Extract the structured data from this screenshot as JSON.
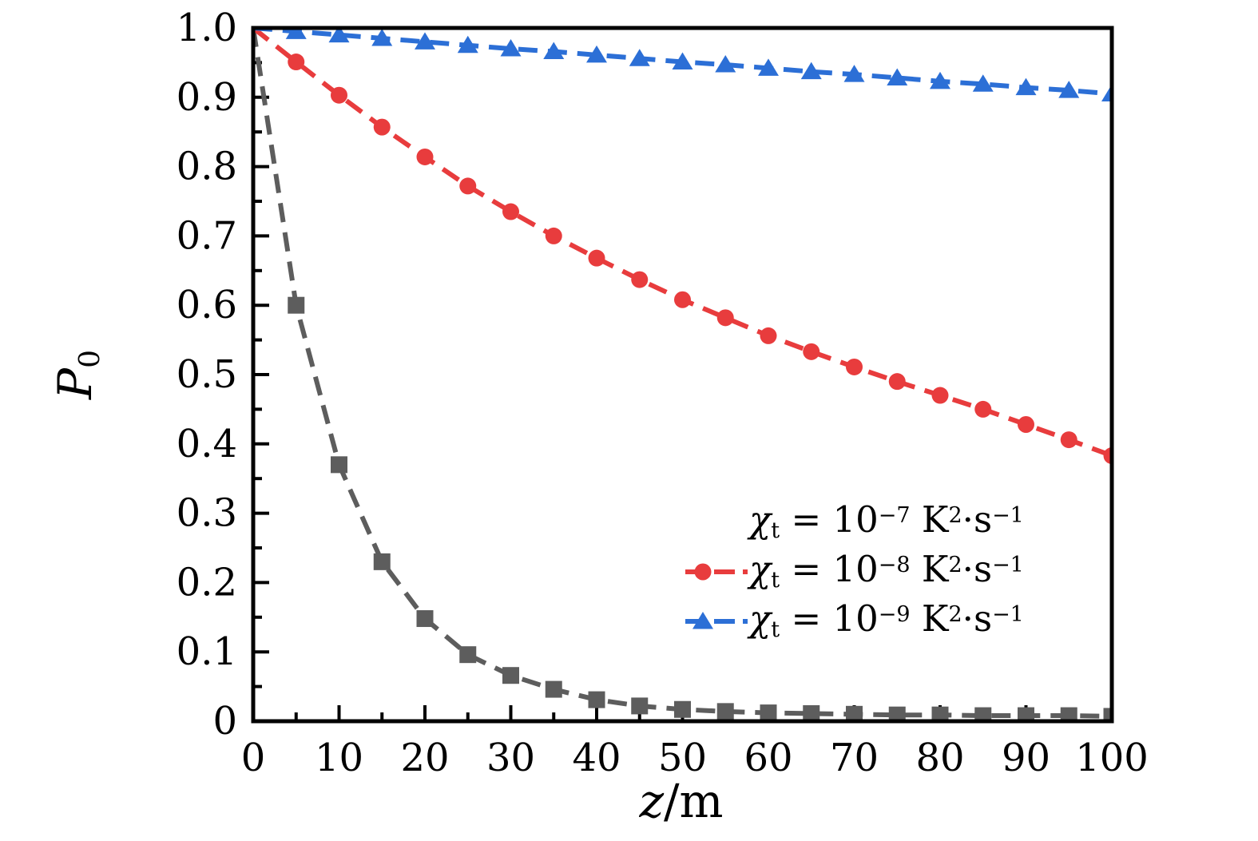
{
  "figure": {
    "background": "#ffffff",
    "frame_color": "#000000"
  },
  "axes": {
    "x": {
      "label_num": "z",
      "label_sep": "/",
      "label_den": "m",
      "min": 0,
      "max": 100,
      "major_step": 10,
      "minor_step": 5,
      "tick_labels": [
        "0",
        "10",
        "20",
        "30",
        "40",
        "50",
        "60",
        "70",
        "80",
        "90",
        "100"
      ]
    },
    "y": {
      "label_base": "P",
      "label_sub": "0",
      "min": 0,
      "max": 1.0,
      "major_step": 0.1,
      "minor_step": 0.05,
      "tick_labels": [
        "1.0",
        "0.9",
        "0.8",
        "0.7",
        "0.6",
        "0.5",
        "0.4",
        "0.3",
        "0.2",
        "0.1",
        "0"
      ]
    }
  },
  "chart_data": {
    "type": "line",
    "title": "",
    "xlabel": "z/m",
    "ylabel": "P0",
    "xlim": [
      0,
      100
    ],
    "ylim": [
      0,
      1.0
    ],
    "grid": false,
    "legend_position": "lower right inside",
    "x": [
      0,
      5,
      10,
      15,
      20,
      25,
      30,
      35,
      40,
      45,
      50,
      55,
      60,
      65,
      70,
      75,
      80,
      85,
      90,
      95,
      100
    ],
    "series": [
      {
        "name": "χₜ = 10⁻⁷ K²·s⁻¹",
        "color": "#5d5d5d",
        "marker": "square",
        "linestyle": "dashed",
        "values": [
          1.0,
          0.6,
          0.37,
          0.23,
          0.148,
          0.096,
          0.066,
          0.046,
          0.031,
          0.022,
          0.017,
          0.014,
          0.012,
          0.011,
          0.01,
          0.009,
          0.009,
          0.008,
          0.008,
          0.008,
          0.007
        ]
      },
      {
        "name": "χₜ = 10⁻⁸ K²·s⁻¹",
        "color": "#e83c3d",
        "marker": "circle",
        "linestyle": "dashed",
        "values": [
          1.0,
          0.951,
          0.903,
          0.857,
          0.814,
          0.772,
          0.735,
          0.7,
          0.668,
          0.637,
          0.608,
          0.582,
          0.556,
          0.533,
          0.511,
          0.49,
          0.47,
          0.45,
          0.428,
          0.406,
          0.383
        ]
      },
      {
        "name": "χₜ = 10⁻⁹ K²·s⁻¹",
        "color": "#2c6fd6",
        "marker": "triangle",
        "linestyle": "dashed",
        "values": [
          1.0,
          0.995,
          0.99,
          0.985,
          0.98,
          0.975,
          0.97,
          0.966,
          0.961,
          0.956,
          0.951,
          0.947,
          0.942,
          0.937,
          0.933,
          0.928,
          0.923,
          0.919,
          0.914,
          0.91,
          0.905
        ]
      }
    ]
  },
  "legend": {
    "items": [
      {
        "key_marker": "none",
        "color": "#5d5d5d",
        "text": {
          "sym": "χ",
          "sym_sub": "t",
          "eq": " = 10",
          "exp": "−7",
          "u1": " K",
          "u1sup": "2",
          "u2": "·s",
          "u2sup": "−1"
        }
      },
      {
        "key_marker": "circle",
        "color": "#e83c3d",
        "text": {
          "sym": "χ",
          "sym_sub": "t",
          "eq": " = 10",
          "exp": "−8",
          "u1": " K",
          "u1sup": "2",
          "u2": "·s",
          "u2sup": "−1"
        }
      },
      {
        "key_marker": "triangle",
        "color": "#2c6fd6",
        "text": {
          "sym": "χ",
          "sym_sub": "t",
          "eq": " = 10",
          "exp": "−9",
          "u1": " K",
          "u1sup": "2",
          "u2": "·s",
          "u2sup": "−1"
        }
      }
    ]
  }
}
